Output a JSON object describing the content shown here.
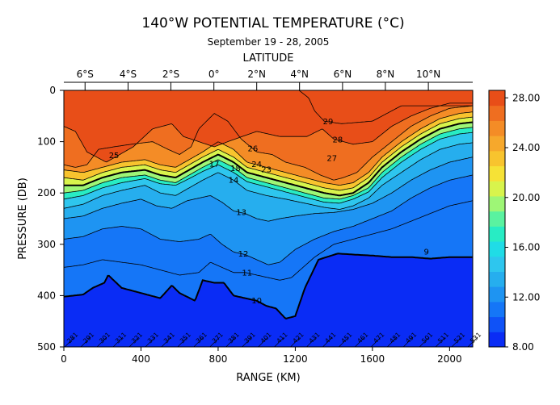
{
  "chart_data": {
    "type": "heatmap",
    "title": "140°W POTENTIAL TEMPERATURE (°C)",
    "subtitle": "September 19 - 28, 2005",
    "xlabel": "RANGE (KM)",
    "ylabel": "PRESSURE (DB)",
    "top_axis_label": "LATITUDE",
    "xlim": [
      0,
      2120
    ],
    "ylim": [
      500,
      0
    ],
    "x_ticks": [
      "0",
      "400",
      "800",
      "1200",
      "1600",
      "2000"
    ],
    "x_tick_values": [
      0,
      400,
      800,
      1200,
      1600,
      2000
    ],
    "y_ticks": [
      "0",
      "100",
      "200",
      "300",
      "400",
      "500"
    ],
    "y_tick_values": [
      0,
      100,
      200,
      300,
      400,
      500
    ],
    "top_ticks": [
      "6°S",
      "4°S",
      "2°S",
      "0°",
      "2°N",
      "4°N",
      "6°N",
      "8°N",
      "10°N"
    ],
    "top_tick_positions_km": [
      110,
      333,
      555,
      778,
      1000,
      1222,
      1445,
      1667,
      1890
    ],
    "colorbar": {
      "ticks": [
        "28.00",
        "24.00",
        "20.00",
        "16.00",
        "12.00",
        "8.00"
      ],
      "tick_values": [
        28,
        24,
        20,
        16,
        12,
        8
      ],
      "range": [
        8,
        28.6
      ],
      "colors": [
        "#0a2cf5",
        "#0f52f7",
        "#1576f7",
        "#1e94f2",
        "#26aeee",
        "#2ec6ee",
        "#20dce6",
        "#28ecc4",
        "#5af2a0",
        "#9ef676",
        "#d8f44c",
        "#f6e236",
        "#f8c42e",
        "#f6a82c",
        "#f48c26",
        "#ef6e20",
        "#e84e18"
      ]
    },
    "grid": false,
    "contour_labels": [
      "29",
      "28",
      "27",
      "26",
      "25",
      "24",
      "23",
      "18",
      "17",
      "14",
      "13",
      "12",
      "11",
      "10",
      "9"
    ],
    "station_labels": [
      "281",
      "291",
      "301",
      "311",
      "321",
      "331",
      "341",
      "351",
      "361",
      "371",
      "381",
      "391",
      "401",
      "411",
      "421",
      "431",
      "441",
      "451",
      "461",
      "471",
      "481",
      "491",
      "501",
      "511",
      "521",
      "531"
    ],
    "contour_lines": [
      {
        "level": 29,
        "x": [
          1220,
          1270,
          1300,
          1350,
          1440,
          1600,
          1750
        ],
        "y": [
          0,
          15,
          40,
          60,
          65,
          60,
          30
        ]
      },
      {
        "level": 28,
        "x": [
          0,
          60,
          120,
          220,
          360,
          460,
          560,
          620,
          700,
          780,
          850,
          1000,
          1120,
          1260,
          1340,
          1400,
          1500,
          1600,
          1700,
          1800,
          1900,
          2000,
          2120
        ],
        "y": [
          70,
          80,
          120,
          140,
          110,
          75,
          65,
          90,
          100,
          110,
          100,
          80,
          90,
          90,
          75,
          95,
          105,
          100,
          70,
          50,
          35,
          25,
          25
        ]
      },
      {
        "level": 26,
        "x": [
          0,
          60,
          120,
          180,
          260,
          350,
          460,
          540,
          600,
          660,
          700,
          780,
          850,
          920,
          1000,
          1080,
          1150,
          1250,
          1330,
          1400,
          1450,
          1520,
          1600,
          1700,
          1800,
          1900,
          2000,
          2120
        ],
        "y": [
          145,
          150,
          145,
          115,
          110,
          105,
          100,
          115,
          125,
          110,
          75,
          45,
          60,
          95,
          120,
          125,
          140,
          150,
          165,
          175,
          170,
          160,
          130,
          100,
          70,
          50,
          35,
          30
        ]
      },
      {
        "level": 24,
        "x": [
          0,
          100,
          200,
          300,
          420,
          500,
          580,
          650,
          720,
          800,
          880,
          950,
          1050,
          1150,
          1250,
          1350,
          1430,
          1500,
          1580,
          1650,
          1750,
          1850,
          1950,
          2050,
          2120
        ],
        "y": [
          155,
          160,
          150,
          140,
          135,
          145,
          150,
          135,
          120,
          100,
          115,
          140,
          150,
          160,
          170,
          180,
          185,
          180,
          160,
          130,
          100,
          75,
          55,
          45,
          42
        ]
      },
      {
        "level": 22,
        "x": [
          0,
          100,
          200,
          300,
          420,
          500,
          580,
          650,
          720,
          800,
          880,
          950,
          1050,
          1150,
          1250,
          1350,
          1430,
          1500,
          1580,
          1650,
          1750,
          1850,
          1950,
          2050,
          2120
        ],
        "y": [
          170,
          175,
          160,
          150,
          145,
          155,
          160,
          145,
          130,
          115,
          130,
          150,
          160,
          170,
          180,
          190,
          195,
          190,
          170,
          140,
          110,
          85,
          65,
          55,
          52
        ]
      },
      {
        "level": 20,
        "x": [
          0,
          100,
          200,
          300,
          420,
          500,
          580,
          650,
          720,
          800,
          880,
          950,
          1050,
          1150,
          1250,
          1350,
          1430,
          1500,
          1580,
          1650,
          1750,
          1850,
          1950,
          2050,
          2120
        ],
        "y": [
          185,
          185,
          170,
          160,
          155,
          165,
          170,
          155,
          140,
          125,
          140,
          160,
          170,
          180,
          190,
          200,
          205,
          200,
          180,
          150,
          120,
          95,
          75,
          65,
          62
        ]
      },
      {
        "level": 18,
        "x": [
          0,
          100,
          200,
          300,
          420,
          500,
          580,
          650,
          720,
          800,
          880,
          950,
          1050,
          1150,
          1250,
          1350,
          1430,
          1500,
          1580,
          1650,
          1750,
          1850,
          1950,
          2050,
          2120
        ],
        "y": [
          200,
          195,
          180,
          170,
          165,
          175,
          180,
          165,
          150,
          135,
          150,
          170,
          180,
          190,
          200,
          210,
          212,
          205,
          190,
          160,
          130,
          105,
          85,
          75,
          72
        ]
      },
      {
        "level": 16,
        "x": [
          0,
          100,
          200,
          300,
          420,
          500,
          580,
          650,
          720,
          800,
          880,
          950,
          1050,
          1150,
          1250,
          1350,
          1430,
          1500,
          1580,
          1650,
          1750,
          1850,
          1950,
          2050,
          2120
        ],
        "y": [
          212,
          205,
          190,
          180,
          172,
          182,
          185,
          172,
          158,
          145,
          160,
          178,
          188,
          198,
          208,
          218,
          220,
          212,
          198,
          170,
          140,
          115,
          95,
          85,
          82
        ]
      },
      {
        "level": 14,
        "x": [
          0,
          100,
          200,
          300,
          420,
          500,
          580,
          650,
          720,
          800,
          880,
          950,
          1050,
          1150,
          1250,
          1350,
          1430,
          1500,
          1580,
          1650,
          1750,
          1850,
          1950,
          2050,
          2120
        ],
        "y": [
          230,
          222,
          205,
          195,
          185,
          200,
          205,
          190,
          175,
          160,
          175,
          195,
          205,
          212,
          220,
          228,
          232,
          225,
          210,
          185,
          160,
          135,
          115,
          105,
          102
        ]
      },
      {
        "level": 13,
        "x": [
          0,
          100,
          200,
          300,
          400,
          480,
          560,
          640,
          700,
          760,
          820,
          880,
          940,
          1000,
          1060,
          1120,
          1200,
          1300,
          1400,
          1500,
          1600,
          1700,
          1800,
          1900,
          2000,
          2120
        ],
        "y": [
          250,
          245,
          230,
          220,
          212,
          225,
          230,
          215,
          210,
          205,
          218,
          235,
          240,
          250,
          255,
          250,
          245,
          240,
          238,
          232,
          220,
          200,
          175,
          155,
          140,
          130
        ]
      },
      {
        "level": 12,
        "x": [
          0,
          100,
          200,
          300,
          400,
          500,
          600,
          700,
          760,
          820,
          880,
          940,
          1000,
          1060,
          1120,
          1200,
          1300,
          1400,
          1500,
          1600,
          1700,
          1800,
          1900,
          2000,
          2120
        ],
        "y": [
          290,
          285,
          270,
          265,
          270,
          290,
          295,
          290,
          280,
          300,
          315,
          320,
          330,
          340,
          335,
          310,
          290,
          275,
          265,
          250,
          235,
          210,
          190,
          175,
          165
        ]
      },
      {
        "level": 11,
        "x": [
          0,
          100,
          200,
          300,
          400,
          500,
          600,
          700,
          760,
          820,
          880,
          940,
          1000,
          1060,
          1120,
          1180,
          1240,
          1300,
          1400,
          1500,
          1600,
          1700,
          1800,
          1900,
          2000,
          2120
        ],
        "y": [
          345,
          340,
          330,
          335,
          340,
          350,
          360,
          355,
          335,
          345,
          355,
          355,
          360,
          365,
          370,
          365,
          345,
          325,
          300,
          290,
          280,
          270,
          255,
          240,
          225,
          215
        ]
      },
      {
        "level": 10,
        "x": [
          0,
          100,
          150,
          210,
          230,
          300,
          400,
          500,
          560,
          600,
          680,
          720,
          780,
          830,
          880,
          940,
          1000,
          1050,
          1100,
          1150,
          1200,
          1250,
          1320,
          1420,
          1500,
          1600,
          1700,
          1800,
          1900,
          2000,
          2120
        ],
        "y": [
          402,
          398,
          385,
          375,
          360,
          385,
          395,
          405,
          380,
          395,
          410,
          370,
          375,
          375,
          400,
          405,
          410,
          420,
          425,
          445,
          440,
          385,
          330,
          318,
          320,
          322,
          325,
          325,
          328,
          325,
          325
        ]
      }
    ]
  }
}
